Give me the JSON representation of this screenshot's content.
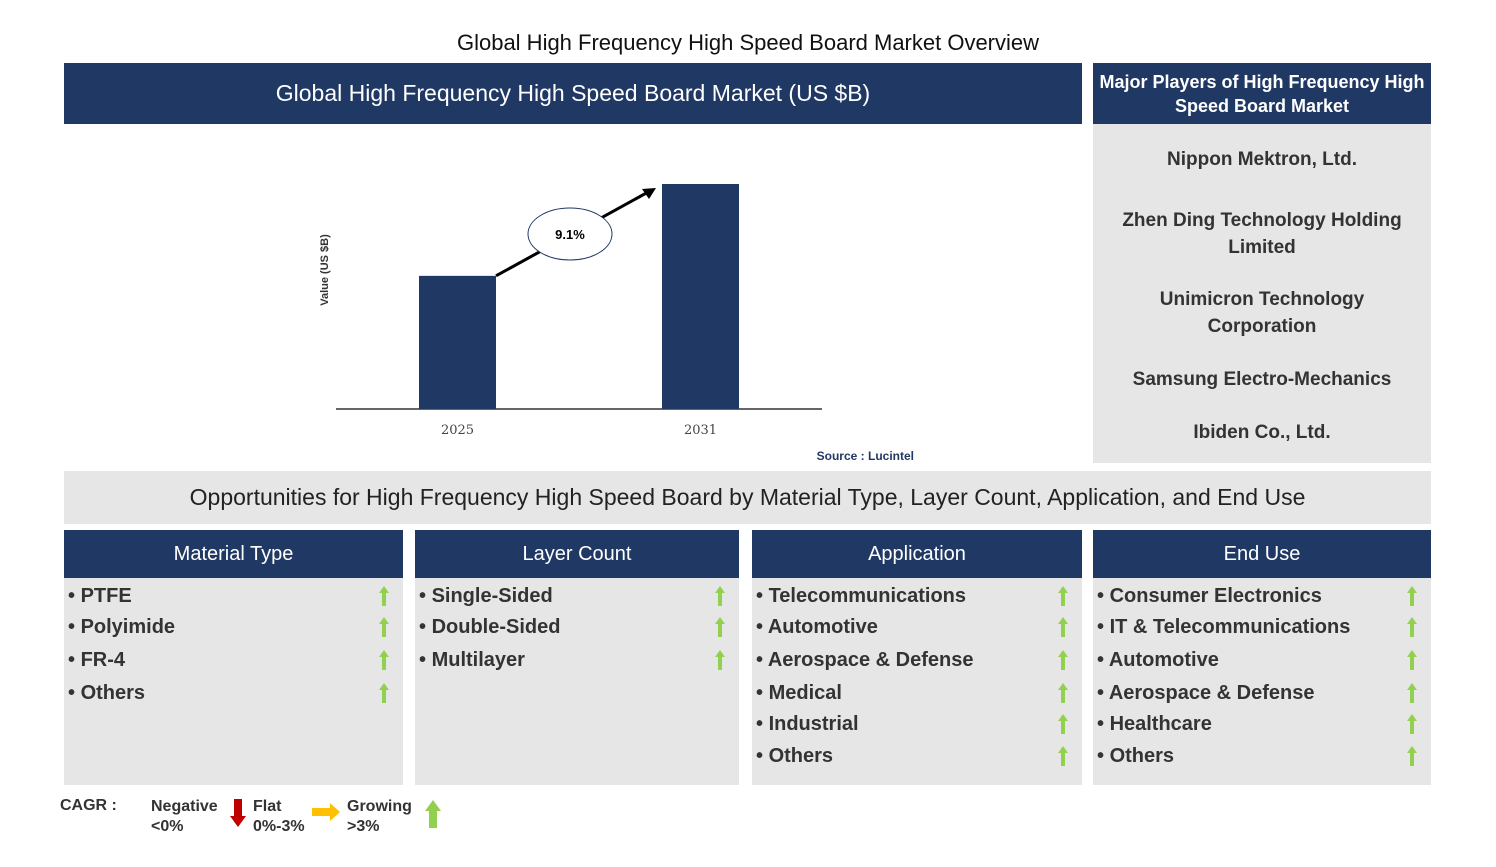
{
  "title": "Global High Frequency High Speed Board Market Overview",
  "chart_header": "Global High Frequency High Speed Board Market (US $B)",
  "chart_data": {
    "type": "bar",
    "categories": [
      "2025",
      "2031"
    ],
    "values": [
      1.0,
      1.69
    ],
    "ylabel": "Value (US $B)",
    "annotation": "9.1%",
    "source": "Source : Lucintel",
    "bar_color": "#203864"
  },
  "players": {
    "header": "Major Players of High Frequency High Speed Board Market",
    "items": [
      "Nippon Mektron, Ltd.",
      "Zhen Ding Technology Holding Limited",
      "Unimicron Technology Corporation",
      "Samsung Electro-Mechanics",
      "Ibiden Co., Ltd."
    ]
  },
  "opportunities_title": "Opportunities for High Frequency High Speed Board by Material Type, Layer Count, Application, and End Use",
  "segments": [
    {
      "title": "Material Type",
      "items": [
        "PTFE",
        "Polyimide",
        "FR-4",
        "Others"
      ]
    },
    {
      "title": "Layer Count",
      "items": [
        "Single-Sided",
        "Double-Sided",
        "Multilayer"
      ]
    },
    {
      "title": "Application",
      "items": [
        "Telecommunications",
        "Automotive",
        "Aerospace & Defense",
        "Medical",
        "Industrial",
        "Others"
      ]
    },
    {
      "title": "End Use",
      "items": [
        "Consumer Electronics",
        "IT & Telecommunications",
        "Automotive",
        "Aerospace & Defense",
        "Healthcare",
        "Others"
      ]
    }
  ],
  "trend_icon": "green-up-arrow",
  "legend": {
    "label": "CAGR :",
    "negative": "Negative",
    "negative_range": "<0%",
    "flat": "Flat",
    "flat_range": "0%-3%",
    "growing": "Growing",
    "growing_range": ">3%",
    "colors": {
      "negative": "#c00000",
      "flat": "#ffc000",
      "growing": "#92d050"
    }
  }
}
